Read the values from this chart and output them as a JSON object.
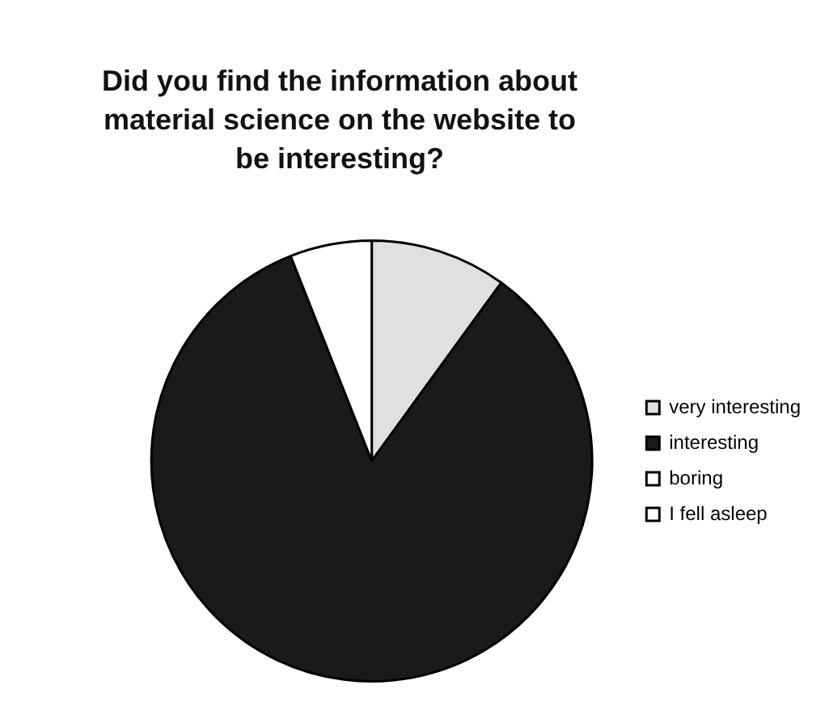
{
  "chart_data": {
    "type": "pie",
    "title": "Did you find the information about material science on the website to be interesting?",
    "categories": [
      "very interesting",
      "interesting",
      "boring",
      "I fell asleep"
    ],
    "values": [
      10,
      84,
      6,
      0
    ],
    "colors": [
      "#e0e0e0",
      "#1a1a1a",
      "#ffffff",
      "#ffffff"
    ],
    "legend": "right"
  }
}
